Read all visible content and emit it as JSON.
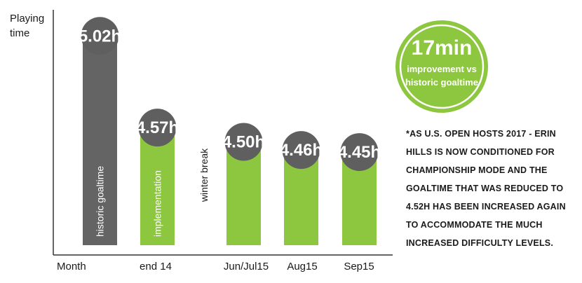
{
  "chart_data": {
    "type": "bar",
    "ylabel": "Playing time",
    "xlabel": "Month",
    "ylim": [
      4.0,
      5.1
    ],
    "categories": [
      "",
      "end 14",
      "",
      "Jun/Jul15",
      "Aug15",
      "Sep15"
    ],
    "values": [
      5.02,
      4.57,
      null,
      4.5,
      4.46,
      4.45
    ],
    "value_labels": [
      "5.02h",
      "4.57h",
      "",
      "4.50h",
      "4.46h",
      "4.45h"
    ],
    "bar_labels": [
      "historic goaltime",
      "implementation",
      "",
      "",
      "",
      ""
    ],
    "gap_label": "winter break",
    "colors": {
      "historic": "#646464",
      "current": "#8dc63f",
      "bubble": "#5f5f5f"
    }
  },
  "badge": {
    "big": "17min",
    "line1": "improvement vs",
    "line2": "historic goaltime"
  },
  "note": "*As U.S. Open hosts 2017 - Erin Hills is now conditioned for championship mode and the goaltime that was reduced to 4.52h has been increased again to accommodate the much increased difficulty levels."
}
